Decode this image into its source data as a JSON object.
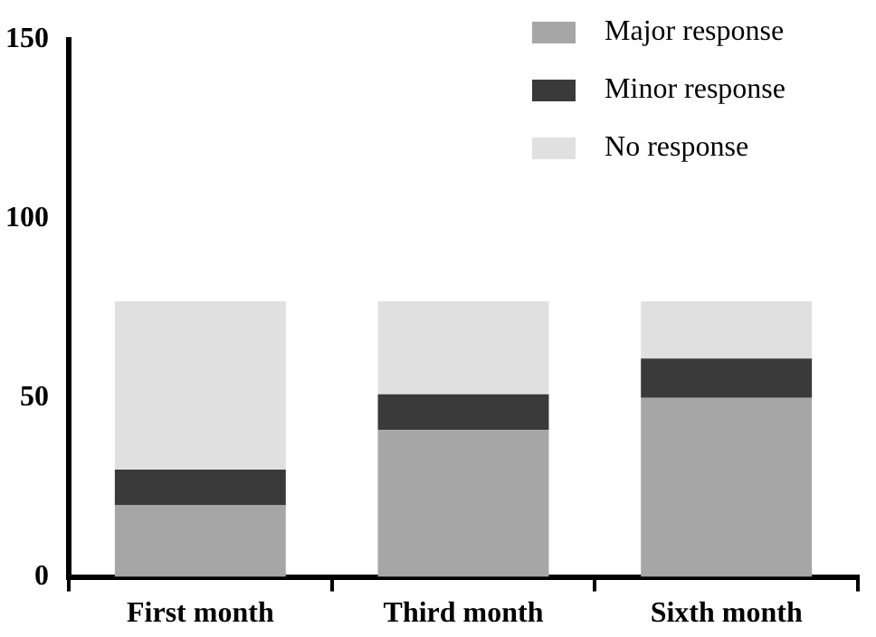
{
  "chart_data": {
    "type": "bar",
    "stacked": true,
    "categories": [
      "First month",
      "Third month",
      "Sixth month"
    ],
    "series": [
      {
        "name": "Major response",
        "color": "#a6a6a6",
        "values": [
          20,
          41,
          50
        ]
      },
      {
        "name": "Minor response",
        "color": "#3a3a3a",
        "values": [
          10,
          10,
          11
        ]
      },
      {
        "name": "No response",
        "color": "#e0e0e0",
        "values": [
          47,
          26,
          16
        ]
      }
    ],
    "ylim": [
      0,
      150
    ],
    "yticks": [
      0,
      50,
      100,
      150
    ],
    "grid": false,
    "legend": "top right"
  }
}
